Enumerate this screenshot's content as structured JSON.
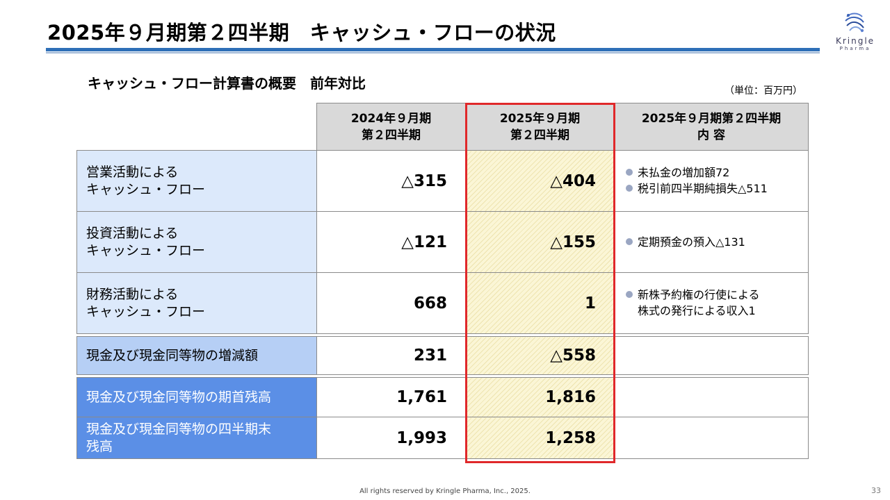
{
  "header": {
    "title": "2025年９月期第２四半期　キャッシュ・フローの状況",
    "logo_name": "Kringle",
    "logo_sub": "Pharma"
  },
  "section": {
    "subtitle": "キャッシュ・フロー計算書の概要　前年対比",
    "unit": "（単位：百万円）"
  },
  "table": {
    "columns": [
      {
        "line1": "2024年９月期",
        "line2": "第２四半期"
      },
      {
        "line1": "2025年９月期",
        "line2": "第２四半期"
      },
      {
        "line1": "2025年９月期第２四半期",
        "line2": "内 容"
      }
    ],
    "rows": [
      {
        "label_l1": "営業活動による",
        "label_l2": "キャッシュ・フロー",
        "prev": "△315",
        "curr": "△404",
        "details": [
          "未払金の増加額72",
          "税引前四半期純損失△511"
        ]
      },
      {
        "label_l1": "投資活動による",
        "label_l2": "キャッシュ・フロー",
        "prev": "△121",
        "curr": "△155",
        "details": [
          "定期預金の預入△131"
        ]
      },
      {
        "label_l1": "財務活動による",
        "label_l2": "キャッシュ・フロー",
        "prev": "668",
        "curr": "1",
        "details": [
          "新株予約権の行使による",
          "株式の発行による収入1"
        ]
      },
      {
        "label": "現金及び現金同等物の増減額",
        "prev": "231",
        "curr": "△558"
      },
      {
        "label": "現金及び現金同等物の期首残高",
        "prev": "1,761",
        "curr": "1,816"
      },
      {
        "label_l1": "現金及び現金同等物の四半期末",
        "label_l2": "残高",
        "prev": "1,993",
        "curr": "1,258"
      }
    ]
  },
  "footer": {
    "copyright": "All rights reserved by Kringle Pharma, Inc., 2025.",
    "page_number": "33"
  },
  "colors": {
    "accent_blue": "#2e6fb7",
    "highlight_border": "#e0282a",
    "label_light": "#dce9fb",
    "label_mid": "#b6cff5",
    "label_dark": "#5b8fe6"
  }
}
